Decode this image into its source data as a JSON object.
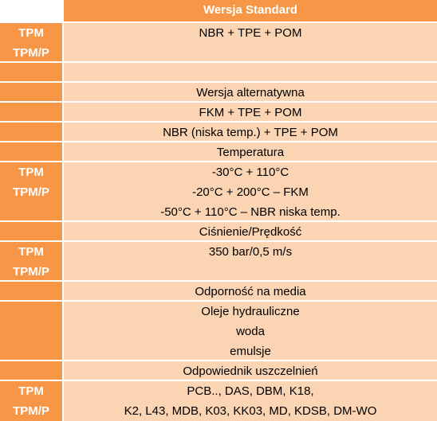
{
  "header": {
    "title": "Wersja Standard"
  },
  "rows": [
    {
      "label": [
        "TPM",
        "TPM/P"
      ],
      "lines": [
        "NBR + TPE + POM"
      ]
    },
    {
      "lines": [
        "Wersja alternatywna"
      ]
    },
    {
      "lines": [
        "FKM + TPE + POM"
      ]
    },
    {
      "lines": [
        "NBR (niska temp.) + TPE + POM"
      ]
    },
    {
      "lines": [
        "Temperatura"
      ]
    },
    {
      "label": [
        "TPM",
        "TPM/P"
      ],
      "lines": [
        "-30°C + 110°C",
        "-20°C + 200°C – FKM",
        "-50°C + 110°C – NBR niska temp."
      ]
    },
    {
      "lines": [
        "Ciśnienie/Prędkość"
      ]
    },
    {
      "label": [
        "TPM",
        "TPM/P"
      ],
      "lines": [
        "350 bar/0,5 m/s"
      ]
    },
    {
      "lines": [
        "Odporność na media"
      ]
    },
    {
      "lines": [
        "Oleje hydrauliczne",
        "woda",
        "emulsje"
      ]
    },
    {
      "lines": [
        "Odpowiednik uszczelnień"
      ]
    },
    {
      "label": [
        "TPM",
        "TPM/P"
      ],
      "lines": [
        "PCB.., DAS, DBM, K18,",
        "K2, L43, MDB, K03, KK03, MD, KDSB, DM-WO"
      ]
    }
  ]
}
